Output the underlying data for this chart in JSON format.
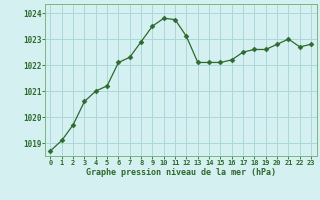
{
  "x": [
    0,
    1,
    2,
    3,
    4,
    5,
    6,
    7,
    8,
    9,
    10,
    11,
    12,
    13,
    14,
    15,
    16,
    17,
    18,
    19,
    20,
    21,
    22,
    23
  ],
  "y": [
    1018.7,
    1019.1,
    1019.7,
    1020.6,
    1021.0,
    1021.2,
    1022.1,
    1022.3,
    1022.9,
    1023.5,
    1023.8,
    1023.75,
    1023.1,
    1022.1,
    1022.1,
    1022.1,
    1022.2,
    1022.5,
    1022.6,
    1022.6,
    1022.8,
    1023.0,
    1022.7,
    1022.8
  ],
  "line_color": "#2d6a2d",
  "marker": "D",
  "marker_size": 2.5,
  "bg_color": "#d4f0f0",
  "grid_color": "#aad8d8",
  "xlabel": "Graphe pression niveau de la mer (hPa)",
  "xlabel_color": "#2d6a2d",
  "tick_color": "#2d6a2d",
  "ylim": [
    1018.5,
    1024.35
  ],
  "yticks": [
    1019,
    1020,
    1021,
    1022,
    1023,
    1024
  ],
  "xticks": [
    0,
    1,
    2,
    3,
    4,
    5,
    6,
    7,
    8,
    9,
    10,
    11,
    12,
    13,
    14,
    15,
    16,
    17,
    18,
    19,
    20,
    21,
    22,
    23
  ],
  "border_color": "#2d6a2d",
  "spine_color": "#7ab87a"
}
